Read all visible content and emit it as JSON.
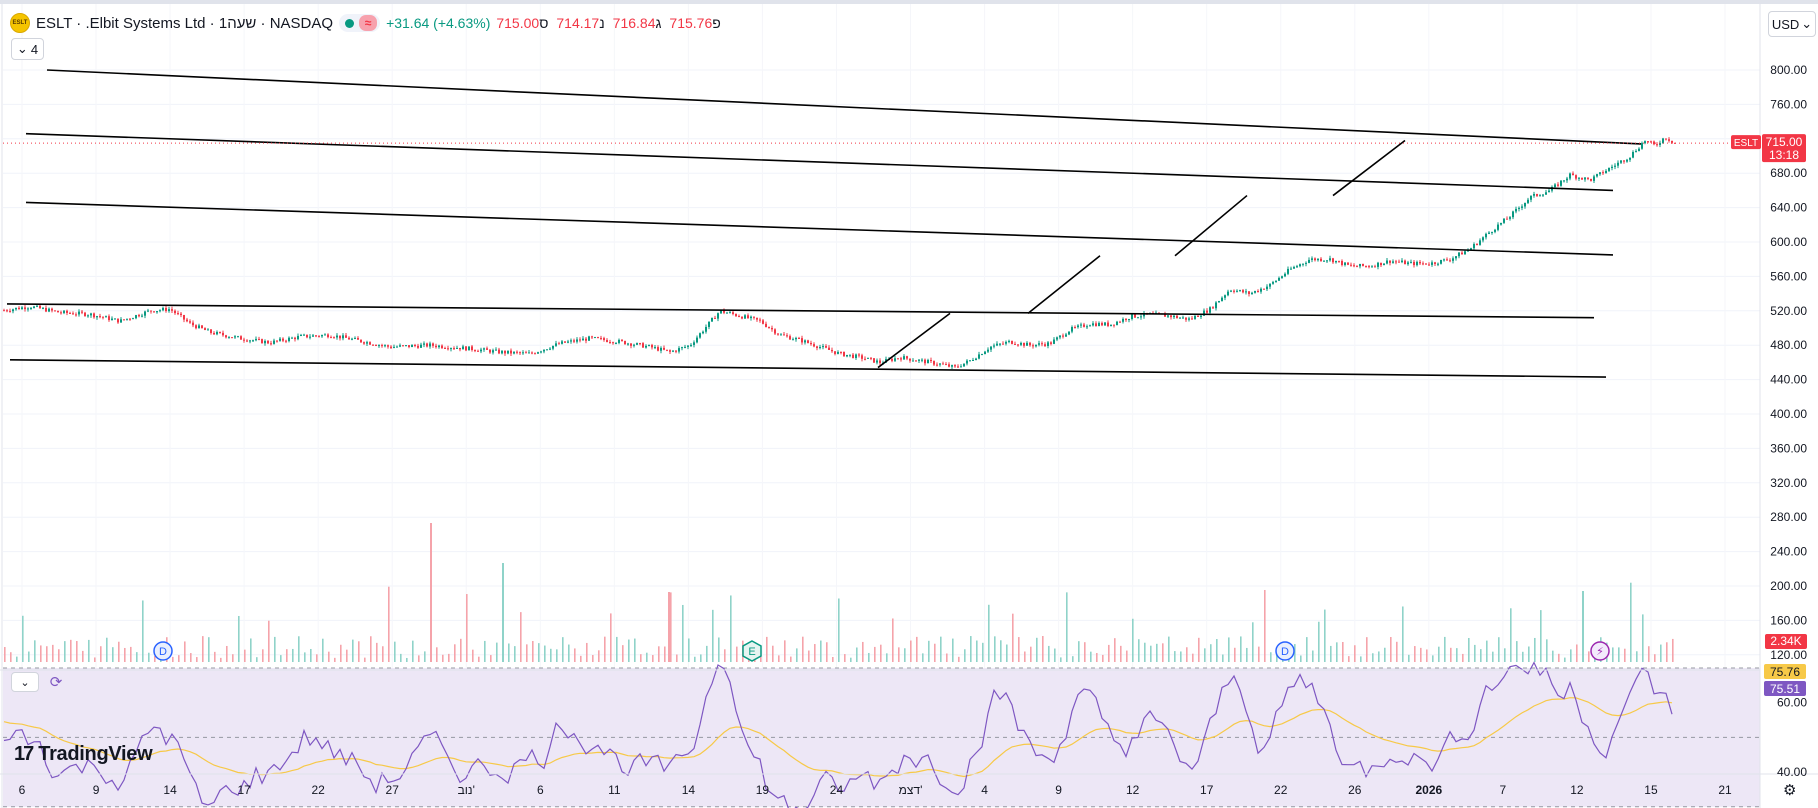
{
  "header": {
    "ticker": "ESLT",
    "company": "Elbit Systems Ltd.",
    "interval": "1שעה",
    "exchange": "NASDAQ",
    "title_line": "ESLT · .Elbit Systems Ltd · 1שעה · NASDAQ",
    "change": "+31.64 (+4.63%)",
    "ohlc": [
      {
        "label": "פ",
        "value": "715.76"
      },
      {
        "label": "ג",
        "value": "716.84"
      },
      {
        "label": "נ",
        "value": "714.17"
      },
      {
        "label": "ס",
        "value": "715.00"
      }
    ],
    "collapse_count": "4",
    "currency": "USD",
    "logo_text": "ESLT"
  },
  "colors": {
    "up": "#089981",
    "down": "#f23645",
    "volume_up": "#8fd3c9",
    "volume_down": "#f5a3aa",
    "rsi_line": "#7e57c2",
    "rsi_ma": "#f7c948",
    "rsi_band": "#ede7f6",
    "trendline": "#000000"
  },
  "chart_data": {
    "type": "candlestick",
    "symbol": "ESLT",
    "timeframe": "1h",
    "price_axis": {
      "ticks": [
        120,
        160,
        200,
        240,
        280,
        320,
        360,
        400,
        440,
        480,
        520,
        560,
        600,
        640,
        680,
        720,
        760,
        800
      ],
      "tick_labels": [
        "120.00",
        "160.00",
        "200.00",
        "240.00",
        "280.00",
        "320.00",
        "360.00",
        "400.00",
        "440.00",
        "480.00",
        "520.00",
        "560.00",
        "600.00",
        "640.00",
        "680.00",
        "",
        "760.00",
        "800.00"
      ],
      "range": [
        93,
        833
      ]
    },
    "time_axis": {
      "labels": [
        "6",
        "9",
        "14",
        "17",
        "22",
        "27",
        "נוב'",
        "6",
        "11",
        "14",
        "19",
        "24",
        "דצמ'",
        "4",
        "9",
        "12",
        "17",
        "22",
        "26",
        "2026",
        "7",
        "12",
        "15",
        "21"
      ],
      "bold": [
        "2026"
      ]
    },
    "last_price": {
      "symbol": "ESLT",
      "value": "715.00",
      "countdown": "13:18"
    },
    "price_path": [
      [
        0,
        520
      ],
      [
        30,
        525
      ],
      [
        60,
        518
      ],
      [
        90,
        516
      ],
      [
        120,
        508
      ],
      [
        150,
        520
      ],
      [
        170,
        522
      ],
      [
        190,
        505
      ],
      [
        210,
        495
      ],
      [
        240,
        488
      ],
      [
        270,
        483
      ],
      [
        300,
        490
      ],
      [
        330,
        492
      ],
      [
        360,
        485
      ],
      [
        390,
        478
      ],
      [
        430,
        480
      ],
      [
        470,
        476
      ],
      [
        500,
        472
      ],
      [
        530,
        470
      ],
      [
        560,
        482
      ],
      [
        590,
        488
      ],
      [
        620,
        484
      ],
      [
        650,
        478
      ],
      [
        670,
        472
      ],
      [
        690,
        480
      ],
      [
        705,
        500
      ],
      [
        720,
        520
      ],
      [
        740,
        514
      ],
      [
        760,
        508
      ],
      [
        780,
        492
      ],
      [
        800,
        486
      ],
      [
        820,
        478
      ],
      [
        840,
        470
      ],
      [
        860,
        466
      ],
      [
        880,
        460
      ],
      [
        900,
        466
      ],
      [
        920,
        462
      ],
      [
        940,
        458
      ],
      [
        955,
        454
      ],
      [
        970,
        462
      ],
      [
        990,
        478
      ],
      [
        1010,
        484
      ],
      [
        1030,
        480
      ],
      [
        1050,
        482
      ],
      [
        1070,
        498
      ],
      [
        1090,
        505
      ],
      [
        1110,
        504
      ],
      [
        1130,
        513
      ],
      [
        1150,
        516
      ],
      [
        1170,
        514
      ],
      [
        1190,
        510
      ],
      [
        1210,
        522
      ],
      [
        1230,
        545
      ],
      [
        1250,
        540
      ],
      [
        1270,
        550
      ],
      [
        1290,
        568
      ],
      [
        1310,
        580
      ],
      [
        1330,
        580
      ],
      [
        1350,
        572
      ],
      [
        1370,
        572
      ],
      [
        1390,
        578
      ],
      [
        1410,
        575
      ],
      [
        1430,
        575
      ],
      [
        1450,
        580
      ],
      [
        1470,
        592
      ],
      [
        1490,
        612
      ],
      [
        1510,
        630
      ],
      [
        1530,
        652
      ],
      [
        1550,
        660
      ],
      [
        1570,
        678
      ],
      [
        1590,
        672
      ],
      [
        1610,
        686
      ],
      [
        1630,
        700
      ],
      [
        1645,
        718
      ],
      [
        1655,
        712
      ],
      [
        1665,
        722
      ],
      [
        1675,
        715
      ]
    ],
    "trendlines": [
      {
        "x1": 47,
        "y1": 800,
        "x2": 1641,
        "y2": 714
      },
      {
        "x1": 26,
        "y1": 726,
        "x2": 1613,
        "y2": 660
      },
      {
        "x1": 26,
        "y1": 646,
        "x2": 1613,
        "y2": 585
      },
      {
        "x1": 7,
        "y1": 528,
        "x2": 1594,
        "y2": 512
      },
      {
        "x1": 10,
        "y1": 463,
        "x2": 1606,
        "y2": 443
      },
      {
        "x1": 878,
        "y1": 454,
        "x2": 950,
        "y2": 517
      },
      {
        "x1": 1028,
        "y1": 517,
        "x2": 1100,
        "y2": 584
      },
      {
        "x1": 1175,
        "y1": 584,
        "x2": 1247,
        "y2": 654
      },
      {
        "x1": 1333,
        "y1": 654,
        "x2": 1405,
        "y2": 718
      }
    ],
    "volume": {
      "last_label": "2.34K",
      "spikes": [
        {
          "x": 430,
          "h": 139,
          "dir": "down"
        },
        {
          "x": 502,
          "h": 99,
          "dir": "up"
        },
        {
          "x": 668,
          "h": 70,
          "dir": "down"
        },
        {
          "x": 1582,
          "h": 71,
          "dir": "up"
        }
      ]
    },
    "events": [
      {
        "type": "dividend",
        "label": "D",
        "x": 163
      },
      {
        "type": "earnings",
        "label": "E",
        "x": 752
      },
      {
        "type": "dividend",
        "label": "D",
        "x": 1285
      }
    ],
    "rsi": {
      "value": "75.51",
      "ma_value": "75.76",
      "ticks": [
        "60.00",
        "40.00"
      ],
      "levels": [
        70,
        50,
        30
      ]
    }
  },
  "branding": "TradingView"
}
